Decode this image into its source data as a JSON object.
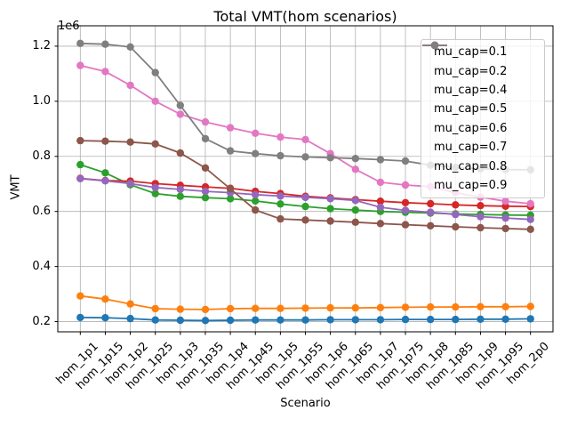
{
  "chart_data": {
    "type": "line",
    "title": "Total VMT(hom scenarios)",
    "xlabel": "Scenario",
    "ylabel": "VMT",
    "y_offset_text": "1e6",
    "grid": true,
    "legend_position": "upper right",
    "categories": [
      "hom_1p1",
      "hom_1p15",
      "hom_1p2",
      "hom_1p25",
      "hom_1p3",
      "hom_1p35",
      "hom_1p4",
      "hom_1p45",
      "hom_1p5",
      "hom_1p55",
      "hom_1p6",
      "hom_1p65",
      "hom_1p7",
      "hom_1p75",
      "hom_1p8",
      "hom_1p85",
      "hom_1p9",
      "hom_1p95",
      "hom_2p0"
    ],
    "yticks": [
      200000,
      400000,
      600000,
      800000,
      1000000,
      1200000
    ],
    "ytick_labels": [
      "0.2",
      "0.4",
      "0.6",
      "0.8",
      "1.0",
      "1.2"
    ],
    "ylim": [
      163000,
      1274000
    ],
    "series": [
      {
        "name": "mu_cap=0.1",
        "color": "#1f77b4",
        "values": [
          215000,
          214000,
          211000,
          206000,
          205000,
          204000,
          205000,
          206000,
          206000,
          206000,
          207000,
          207000,
          207000,
          208000,
          208000,
          208000,
          209000,
          209000,
          210000
        ]
      },
      {
        "name": "mu_cap=0.2",
        "color": "#ff7f0e",
        "values": [
          293000,
          282000,
          264000,
          247000,
          245000,
          244000,
          247000,
          248000,
          248000,
          249000,
          250000,
          250000,
          251000,
          252000,
          253000,
          253000,
          254000,
          254000,
          255000
        ]
      },
      {
        "name": "mu_cap=0.4",
        "color": "#2ca02c",
        "values": [
          770000,
          740000,
          697000,
          665000,
          655000,
          650000,
          646000,
          638000,
          627000,
          618000,
          610000,
          605000,
          600000,
          597000,
          594000,
          591000,
          589000,
          587000,
          586000
        ]
      },
      {
        "name": "mu_cap=0.5",
        "color": "#d62728",
        "values": [
          720000,
          712000,
          710000,
          701000,
          695000,
          689000,
          684000,
          673000,
          665000,
          655000,
          649000,
          643000,
          637000,
          632000,
          628000,
          624000,
          621000,
          619000,
          618000
        ]
      },
      {
        "name": "mu_cap=0.6",
        "color": "#9467bd",
        "values": [
          719000,
          711000,
          701000,
          687000,
          680000,
          673000,
          668000,
          661000,
          656000,
          651000,
          646000,
          640000,
          615000,
          604000,
          597000,
          589000,
          581000,
          576000,
          571000
        ]
      },
      {
        "name": "mu_cap=0.7",
        "color": "#8c564b",
        "values": [
          857000,
          855000,
          852000,
          845000,
          812000,
          758000,
          682000,
          605000,
          573000,
          569000,
          565000,
          561000,
          556000,
          552000,
          548000,
          544000,
          541000,
          538000,
          535000
        ]
      },
      {
        "name": "mu_cap=0.8",
        "color": "#e377c2",
        "values": [
          1130000,
          1108000,
          1058000,
          1000000,
          953000,
          925000,
          904000,
          884000,
          870000,
          861000,
          810000,
          753000,
          706000,
          696000,
          690000,
          668000,
          652000,
          637000,
          628000
        ]
      },
      {
        "name": "mu_cap=0.9",
        "color": "#7f7f7f",
        "values": [
          1210000,
          1207000,
          1197000,
          1104000,
          985000,
          864000,
          820000,
          810000,
          802000,
          798000,
          795000,
          792000,
          788000,
          783000,
          768000,
          760000,
          755000,
          752000,
          751000
        ]
      }
    ],
    "grid_color": "#b0b0b0",
    "spine_color": "#000000"
  }
}
